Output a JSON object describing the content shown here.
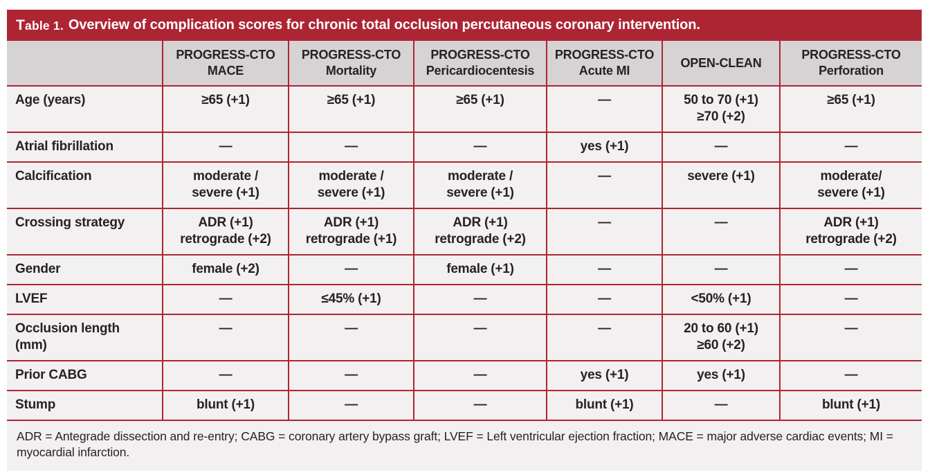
{
  "title": {
    "table_label": "Table 1.",
    "text": "Overview of complication scores for chronic total occlusion percutaneous coronary intervention."
  },
  "table": {
    "columns": [
      {
        "id": "progress-cto-mace",
        "lines": [
          "PROGRESS-CTO",
          "MACE"
        ]
      },
      {
        "id": "progress-cto-mortality",
        "lines": [
          "PROGRESS-CTO",
          "Mortality"
        ]
      },
      {
        "id": "progress-cto-pericardiocentesis",
        "lines": [
          "PROGRESS-CTO",
          "Pericardiocentesis"
        ]
      },
      {
        "id": "progress-cto-acute-mi",
        "lines": [
          "PROGRESS-CTO",
          "Acute MI"
        ]
      },
      {
        "id": "open-clean",
        "lines": [
          "OPEN-CLEAN"
        ]
      },
      {
        "id": "progress-cto-perforation",
        "lines": [
          "PROGRESS-CTO",
          "Perforation"
        ]
      }
    ],
    "rows": [
      {
        "id": "age",
        "label_lines": [
          "Age (years)"
        ],
        "cells": [
          [
            "≥65 (+1)"
          ],
          [
            "≥65 (+1)"
          ],
          [
            "≥65 (+1)"
          ],
          [
            "—"
          ],
          [
            "50 to 70 (+1)",
            "≥70 (+2)"
          ],
          [
            "≥65 (+1)"
          ]
        ]
      },
      {
        "id": "atrial-fibrillation",
        "label_lines": [
          "Atrial fibrillation"
        ],
        "cells": [
          [
            "—"
          ],
          [
            "—"
          ],
          [
            "—"
          ],
          [
            "yes (+1)"
          ],
          [
            "—"
          ],
          [
            "—"
          ]
        ]
      },
      {
        "id": "calcification",
        "label_lines": [
          "Calcification"
        ],
        "cells": [
          [
            "moderate /",
            "severe (+1)"
          ],
          [
            "moderate /",
            "severe (+1)"
          ],
          [
            "moderate /",
            "severe (+1)"
          ],
          [
            "—"
          ],
          [
            "severe (+1)"
          ],
          [
            "moderate/",
            "severe (+1)"
          ]
        ]
      },
      {
        "id": "crossing-strategy",
        "label_lines": [
          "Crossing strategy"
        ],
        "cells": [
          [
            "ADR (+1)",
            "retrograde (+2)"
          ],
          [
            "ADR (+1)",
            "retrograde (+1)"
          ],
          [
            "ADR (+1)",
            "retrograde (+2)"
          ],
          [
            "—"
          ],
          [
            "—"
          ],
          [
            "ADR (+1)",
            "retrograde (+2)"
          ]
        ]
      },
      {
        "id": "gender",
        "label_lines": [
          "Gender"
        ],
        "cells": [
          [
            "female (+2)"
          ],
          [
            "—"
          ],
          [
            "female (+1)"
          ],
          [
            "—"
          ],
          [
            "—"
          ],
          [
            "—"
          ]
        ]
      },
      {
        "id": "lvef",
        "label_lines": [
          "LVEF"
        ],
        "cells": [
          [
            "—"
          ],
          [
            "≤45% (+1)"
          ],
          [
            "—"
          ],
          [
            "—"
          ],
          [
            "<50% (+1)"
          ],
          [
            "—"
          ]
        ]
      },
      {
        "id": "occlusion-length",
        "label_lines": [
          "Occlusion length",
          "(mm)"
        ],
        "cells": [
          [
            "—"
          ],
          [
            "—"
          ],
          [
            "—"
          ],
          [
            "—"
          ],
          [
            "20 to 60 (+1)",
            "≥60 (+2)"
          ],
          [
            "—"
          ]
        ]
      },
      {
        "id": "prior-cabg",
        "label_lines": [
          "Prior CABG"
        ],
        "cells": [
          [
            "—"
          ],
          [
            "—"
          ],
          [
            "—"
          ],
          [
            "yes (+1)"
          ],
          [
            "yes (+1)"
          ],
          [
            "—"
          ]
        ]
      },
      {
        "id": "stump",
        "label_lines": [
          "Stump"
        ],
        "cells": [
          [
            "blunt (+1)"
          ],
          [
            "—"
          ],
          [
            "—"
          ],
          [
            "blunt (+1)"
          ],
          [
            "—"
          ],
          [
            "blunt (+1)"
          ]
        ]
      }
    ]
  },
  "footnote": "ADR = Antegrade dissection and re-entry; CABG = coronary artery bypass graft; LVEF = Left ventricular ejection fraction; MACE = major adverse cardiac events; MI = myocardial infarction.",
  "colors": {
    "title_bar": "#ad2533",
    "border": "#ad2533",
    "header_bg": "#d5d3d4",
    "row_bg": "#f2f0f0",
    "title_text": "#ffffff",
    "body_text": "#262223"
  }
}
